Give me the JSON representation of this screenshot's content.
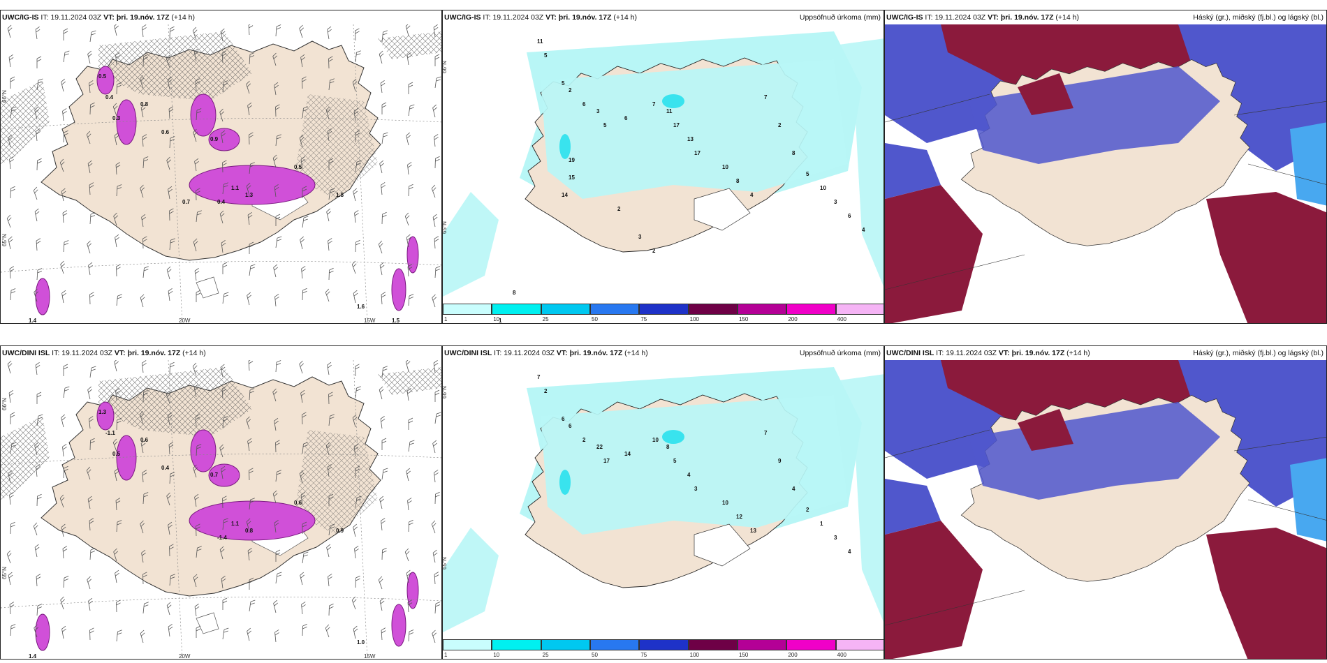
{
  "rows": [
    {
      "model": "UWC/IG-IS",
      "panels": [
        {
          "type": "precip_type",
          "model": "UWC/IG-IS",
          "it_label": "IT:",
          "it": "19.11.2024 03Z",
          "vt_label": "VT:",
          "vt": "þri. 19.nóv. 17Z",
          "lead": "(+14 h)",
          "title_right": "",
          "lon_labels": [
            "20W",
            "15W"
          ],
          "lat_labels": [
            "66°N",
            "65°N"
          ],
          "values": [
            "0.5",
            "0.4",
            "0.3",
            "0.8",
            "0.6",
            "0.9",
            "1.1",
            "1.3",
            "1.8",
            "0.5",
            "0.4",
            "1.4",
            "1.6",
            "1.5",
            "0.7"
          ]
        },
        {
          "type": "precip_acc",
          "model": "UWC/IG-IS",
          "it_label": "IT:",
          "it": "19.11.2024 03Z",
          "vt_label": "VT:",
          "vt": "þri. 19.nóv. 17Z",
          "lead": "(+14 h)",
          "title_right": "Uppsöfnuð úrkoma (mm)",
          "lat_labels": [
            "66°N",
            "65°N"
          ],
          "values": [
            "11",
            "5",
            "5",
            "2",
            "6",
            "3",
            "5",
            "6",
            "7",
            "11",
            "17",
            "13",
            "17",
            "10",
            "8",
            "4",
            "7",
            "2",
            "8",
            "5",
            "10",
            "3",
            "6",
            "4",
            "19",
            "15",
            "14",
            "2",
            "3",
            "2",
            "1",
            "8"
          ]
        },
        {
          "type": "cloud",
          "model": "UWC/IG-IS",
          "it_label": "IT:",
          "it": "19.11.2024 03Z",
          "vt_label": "VT:",
          "vt": "þri. 19.nóv. 17Z",
          "lead": "(+14 h)",
          "title_right": "Háský (gr.), miðský (fj.bl.) og lágský (bl.)"
        }
      ]
    },
    {
      "model": "UWC/DINI ISL",
      "panels": [
        {
          "type": "precip_type",
          "model": "UWC/DINI ISL",
          "it_label": "IT:",
          "it": "19.11.2024 03Z",
          "vt_label": "VT:",
          "vt": "þri. 19.nóv. 17Z",
          "lead": "(+14 h)",
          "title_right": "",
          "lon_labels": [
            "20W",
            "15W"
          ],
          "lat_labels": [
            "66°N",
            "65°N"
          ],
          "values": [
            "1.3",
            "-1.1",
            "0.5",
            "0.6",
            "0.4",
            "0.7",
            "1.1",
            "0.8",
            "0.9",
            "0.6",
            "-1.4",
            "1.4",
            "1.0"
          ]
        },
        {
          "type": "precip_acc",
          "model": "UWC/DINI ISL",
          "it_label": "IT:",
          "it": "19.11.2024 03Z",
          "vt_label": "VT:",
          "vt": "þri. 19.nóv. 17Z",
          "lead": "(+14 h)",
          "title_right": "Uppsöfnuð úrkoma (mm)",
          "lat_labels": [
            "66°N",
            "65°N"
          ],
          "values": [
            "7",
            "2",
            "6",
            "6",
            "2",
            "22",
            "17",
            "14",
            "10",
            "8",
            "5",
            "4",
            "3",
            "10",
            "12",
            "13",
            "7",
            "9",
            "4",
            "2",
            "1",
            "3",
            "4"
          ]
        },
        {
          "type": "cloud",
          "model": "UWC/DINI ISL",
          "it_label": "IT:",
          "it": "19.11.2024 03Z",
          "vt_label": "VT:",
          "vt": "þri. 19.nóv. 17Z",
          "lead": "(+14 h)",
          "title_right": "Háský (gr.), miðský (fj.bl.) og lágský (bl.)"
        }
      ]
    }
  ],
  "legend": {
    "ticks": [
      "1",
      "10",
      "25",
      "50",
      "75",
      "100",
      "150",
      "200",
      "400"
    ],
    "colors": [
      "#c9fdfd",
      "#00f0f0",
      "#00c8f0",
      "#2878f0",
      "#1e32c8",
      "#6e0046",
      "#b40096",
      "#f000c8",
      "#f5b4f5"
    ]
  },
  "colors": {
    "land": "#f2e3d3",
    "precip_light": "#b8f6f6",
    "precip_mid": "#39e3ee",
    "snow": "#d050d8",
    "cloud_high": "#8b1a3c",
    "cloud_mid": "#5057cc",
    "cloud_low": "#48a8f0"
  }
}
